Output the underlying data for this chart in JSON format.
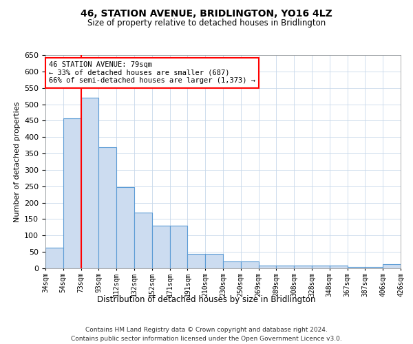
{
  "title": "46, STATION AVENUE, BRIDLINGTON, YO16 4LZ",
  "subtitle": "Size of property relative to detached houses in Bridlington",
  "xlabel": "Distribution of detached houses by size in Bridlington",
  "ylabel": "Number of detached properties",
  "footer_line1": "Contains HM Land Registry data © Crown copyright and database right 2024.",
  "footer_line2": "Contains public sector information licensed under the Open Government Licence v3.0.",
  "bin_labels": [
    "34sqm",
    "54sqm",
    "73sqm",
    "93sqm",
    "112sqm",
    "132sqm",
    "152sqm",
    "171sqm",
    "191sqm",
    "210sqm",
    "230sqm",
    "250sqm",
    "269sqm",
    "289sqm",
    "308sqm",
    "328sqm",
    "348sqm",
    "367sqm",
    "387sqm",
    "406sqm",
    "426sqm"
  ],
  "bar_heights": [
    62,
    457,
    519,
    370,
    248,
    170,
    130,
    130,
    45,
    45,
    22,
    22,
    8,
    8,
    8,
    8,
    8,
    5,
    5,
    12
  ],
  "bar_color": "#ccdcf0",
  "bar_edge_color": "#5b9bd5",
  "red_line_x": 2,
  "ylim": [
    0,
    650
  ],
  "yticks": [
    0,
    50,
    100,
    150,
    200,
    250,
    300,
    350,
    400,
    450,
    500,
    550,
    600,
    650
  ],
  "annotation_text": "46 STATION AVENUE: 79sqm\n← 33% of detached houses are smaller (687)\n66% of semi-detached houses are larger (1,373) →",
  "annotation_box_color": "white",
  "annotation_box_edge_color": "red",
  "bg_color": "white",
  "grid_color": "#c8d8ea"
}
